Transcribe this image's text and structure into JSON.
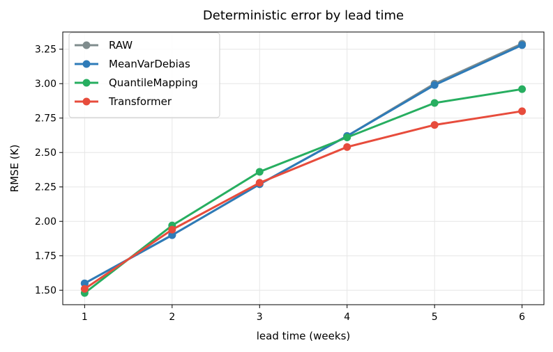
{
  "chart_data": {
    "type": "line",
    "title": "Deterministic error by lead time",
    "xlabel": "lead time (weeks)",
    "ylabel": "RMSE (K)",
    "x": [
      1,
      2,
      3,
      4,
      5,
      6
    ],
    "xticks": [
      "1",
      "2",
      "3",
      "4",
      "5",
      "6"
    ],
    "yticks": [
      "1.50",
      "1.75",
      "2.00",
      "2.25",
      "2.50",
      "2.75",
      "3.00",
      "3.25"
    ],
    "ylim": [
      1.395,
      3.375
    ],
    "xlim": [
      0.75,
      6.25
    ],
    "grid": true,
    "legend_position": "upper-left",
    "series": [
      {
        "name": "RAW",
        "color": "#7f8c8d",
        "values": [
          1.55,
          1.9,
          2.27,
          2.62,
          3.0,
          3.29
        ]
      },
      {
        "name": "MeanVarDebias",
        "color": "#2e7bb8",
        "values": [
          1.55,
          1.9,
          2.27,
          2.62,
          2.99,
          3.28
        ]
      },
      {
        "name": "QuantileMapping",
        "color": "#27ae60",
        "values": [
          1.48,
          1.97,
          2.36,
          2.61,
          2.86,
          2.96
        ]
      },
      {
        "name": "Transformer",
        "color": "#e74c3c",
        "values": [
          1.51,
          1.94,
          2.28,
          2.54,
          2.7,
          2.8
        ]
      }
    ]
  }
}
